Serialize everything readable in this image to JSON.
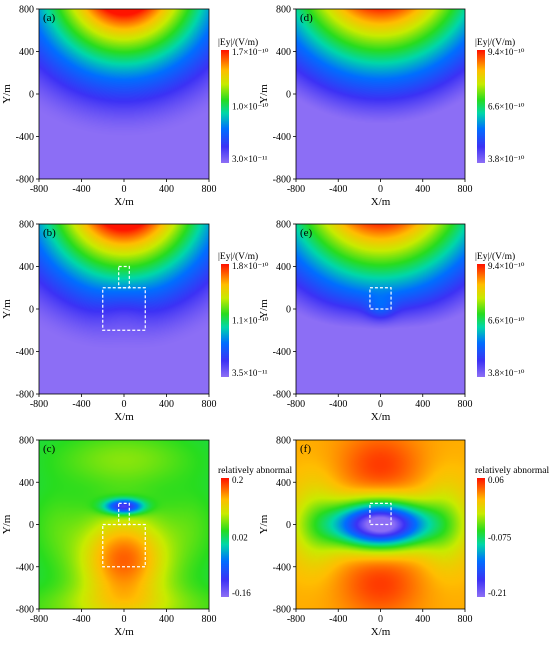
{
  "panels": [
    {
      "id": "a",
      "label": "(a)",
      "xlabel": "X/m",
      "ylabel": "Y/m",
      "xticks": [
        "-800",
        "-400",
        "0",
        "400",
        "800"
      ],
      "yticks": [
        "800",
        "400",
        "0",
        "-400",
        "-800"
      ],
      "colorbar": {
        "title": "|Ey|/(V/m)",
        "labels": [
          "1.7×10⁻¹⁰",
          "1.0×10⁻¹⁰",
          "3.0×10⁻¹¹"
        ]
      },
      "field": "a",
      "boxes": []
    },
    {
      "id": "d",
      "label": "(d)",
      "xlabel": "X/m",
      "ylabel": "Y/m",
      "xticks": [
        "-800",
        "-400",
        "0",
        "400",
        "800"
      ],
      "yticks": [
        "800",
        "400",
        "0",
        "-400",
        "-800"
      ],
      "colorbar": {
        "title": "|Ey|/(V/m)",
        "labels": [
          "9.4×10⁻¹⁰",
          "6.6×10⁻¹⁰",
          "3.8×10⁻¹⁰"
        ]
      },
      "field": "d",
      "boxes": []
    },
    {
      "id": "b",
      "label": "(b)",
      "xlabel": "X/m",
      "ylabel": "Y/m",
      "xticks": [
        "-800",
        "-400",
        "0",
        "400",
        "800"
      ],
      "yticks": [
        "800",
        "400",
        "0",
        "-400",
        "-800"
      ],
      "colorbar": {
        "title": "|Ey|/(V/m)",
        "labels": [
          "1.8×10⁻¹⁰",
          "1.1×10⁻¹⁰",
          "3.5×10⁻¹¹"
        ]
      },
      "field": "b",
      "boxes": [
        [
          -50,
          200,
          400
        ],
        [
          -200,
          -200,
          200
        ]
      ]
    },
    {
      "id": "e",
      "label": "(e)",
      "xlabel": "X/m",
      "ylabel": "Y/m",
      "xticks": [
        "-800",
        "-400",
        "0",
        "400",
        "800"
      ],
      "yticks": [
        "800",
        "400",
        "0",
        "-400",
        "-800"
      ],
      "colorbar": {
        "title": "|Ey|/(V/m)",
        "labels": [
          "9.4×10⁻¹⁰",
          "6.6×10⁻¹⁰",
          "3.8×10⁻¹⁰"
        ]
      },
      "field": "e",
      "boxes": [
        [
          -50,
          0,
          100
        ]
      ]
    },
    {
      "id": "c",
      "label": "(c)",
      "xlabel": "X/m",
      "ylabel": "Y/m",
      "xticks": [
        "-800",
        "-400",
        "0",
        "400",
        "800"
      ],
      "yticks": [
        "800",
        "400",
        "0",
        "-400",
        "-800"
      ],
      "colorbar": {
        "title": "relatively abnormal",
        "labels": [
          "0.2",
          "0.02",
          "-0.16"
        ]
      },
      "field": "c",
      "boxes": [
        [
          -50,
          200,
          0
        ],
        [
          -200,
          -400,
          0
        ]
      ]
    },
    {
      "id": "f",
      "label": "(f)",
      "xlabel": "X/m",
      "ylabel": "Y/m",
      "xticks": [
        "-800",
        "-400",
        "0",
        "400",
        "800"
      ],
      "yticks": [
        "800",
        "400",
        "0",
        "-400",
        "-800"
      ],
      "colorbar": {
        "title": "relatively abnormal",
        "labels": [
          "0.06",
          "-0.075",
          "-0.21"
        ]
      },
      "field": "f",
      "boxes": [
        [
          -50,
          0,
          100
        ]
      ]
    }
  ],
  "chart_data": [
    {
      "type": "heatmap",
      "panel": "(a)",
      "xlabel": "X/m",
      "ylabel": "Y/m",
      "xlim": [
        -800,
        800
      ],
      "ylim": [
        -800,
        800
      ],
      "colorbar_title": "|Ey|/(V/m)",
      "colorbar_range": [
        3e-11,
        1.7e-10
      ],
      "colorbar_mid": 1e-10
    },
    {
      "type": "heatmap",
      "panel": "(d)",
      "xlabel": "X/m",
      "ylabel": "Y/m",
      "xlim": [
        -800,
        800
      ],
      "ylim": [
        -800,
        800
      ],
      "colorbar_title": "|Ey|/(V/m)",
      "colorbar_range": [
        3.8e-10,
        9.4e-10
      ],
      "colorbar_mid": 6.6e-10
    },
    {
      "type": "heatmap",
      "panel": "(b)",
      "xlabel": "X/m",
      "ylabel": "Y/m",
      "xlim": [
        -800,
        800
      ],
      "ylim": [
        -800,
        800
      ],
      "colorbar_title": "|Ey|/(V/m)",
      "colorbar_range": [
        3.5e-11,
        1.8e-10
      ],
      "colorbar_mid": 1.1e-10
    },
    {
      "type": "heatmap",
      "panel": "(e)",
      "xlabel": "X/m",
      "ylabel": "Y/m",
      "xlim": [
        -800,
        800
      ],
      "ylim": [
        -800,
        800
      ],
      "colorbar_title": "|Ey|/(V/m)",
      "colorbar_range": [
        3.8e-10,
        9.4e-10
      ],
      "colorbar_mid": 6.6e-10
    },
    {
      "type": "heatmap",
      "panel": "(c)",
      "xlabel": "X/m",
      "ylabel": "Y/m",
      "xlim": [
        -800,
        800
      ],
      "ylim": [
        -800,
        800
      ],
      "colorbar_title": "relatively abnormal",
      "colorbar_range": [
        -0.16,
        0.2
      ],
      "colorbar_mid": 0.02
    },
    {
      "type": "heatmap",
      "panel": "(f)",
      "xlabel": "X/m",
      "ylabel": "Y/m",
      "xlim": [
        -800,
        800
      ],
      "ylim": [
        -800,
        800
      ],
      "colorbar_title": "relatively abnormal",
      "colorbar_range": [
        -0.21,
        0.06
      ],
      "colorbar_mid": -0.075
    }
  ]
}
